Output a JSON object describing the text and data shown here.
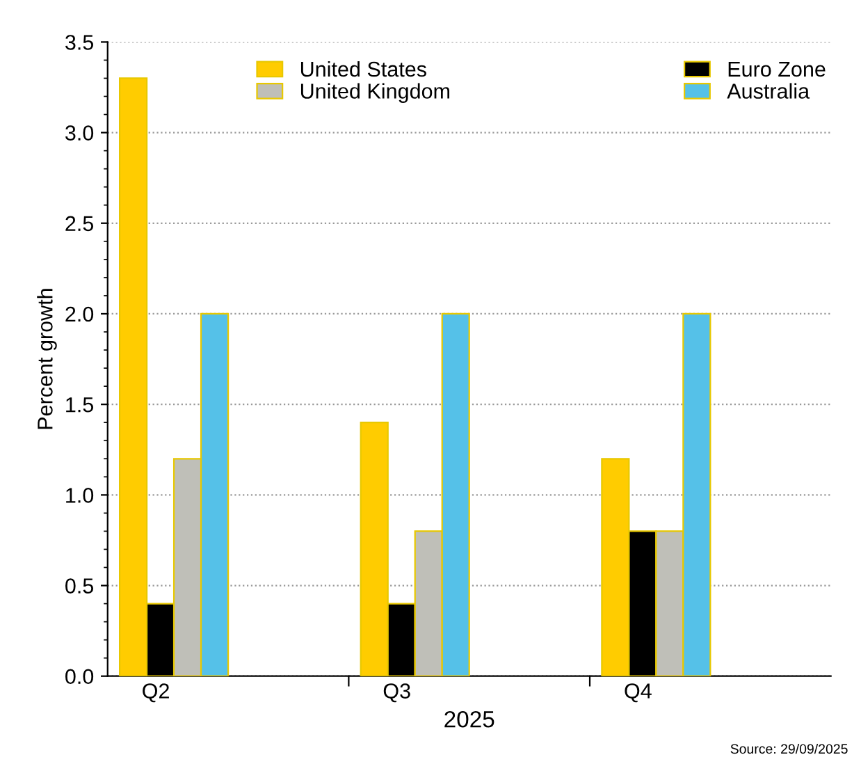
{
  "chart_data": {
    "type": "bar",
    "xlabel": "2025",
    "ylabel": "Percent growth",
    "categories": [
      "Q2",
      "Q3",
      "Q4"
    ],
    "series": [
      {
        "name": "United States",
        "color": "#ffcc00",
        "values": [
          3.3,
          1.4,
          1.2
        ]
      },
      {
        "name": "Euro Zone",
        "color": "#000000",
        "values": [
          0.4,
          0.4,
          0.8
        ]
      },
      {
        "name": "United Kingdom",
        "color": "#bfbfb8",
        "values": [
          1.2,
          0.8,
          0.8
        ]
      },
      {
        "name": "Australia",
        "color": "#55c1e8",
        "values": [
          2.0,
          2.0,
          2.0
        ]
      }
    ],
    "ylim": [
      0,
      3.5
    ],
    "yticks": [
      {
        "value": 0,
        "label": "0.0"
      },
      0.5,
      {
        "value": 1,
        "label": "1.0"
      },
      1.5,
      {
        "value": 2,
        "label": "2.0"
      },
      2.5,
      {
        "value": 3,
        "label": "3.0"
      },
      3.5
    ],
    "grid": "y",
    "legend": "top",
    "annotations": [
      "Source: 29/09/2025"
    ]
  }
}
